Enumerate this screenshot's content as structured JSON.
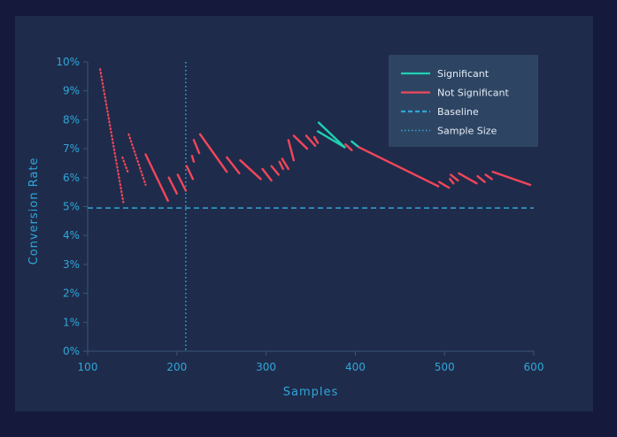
{
  "chart_data": {
    "type": "line",
    "xlabel": "Samples",
    "ylabel": "Conversion Rate",
    "xlim": [
      100,
      600
    ],
    "ylim": [
      0,
      10
    ],
    "x_ticks": [
      "100",
      "200",
      "300",
      "400",
      "500",
      "600"
    ],
    "y_ticks": [
      "0%",
      "1%",
      "2%",
      "3%",
      "4%",
      "5%",
      "6%",
      "7%",
      "8%",
      "9%",
      "10%"
    ],
    "grid": false,
    "legend_position": "top-right",
    "baseline": 4.95,
    "sample_size": 210,
    "legend": [
      {
        "label": "Significant",
        "style": "solid",
        "color": "#1fd1b2"
      },
      {
        "label": "Not Significant",
        "style": "solid",
        "color": "#f2465a"
      },
      {
        "label": "Baseline",
        "style": "dashed",
        "color": "#2fa7d8"
      },
      {
        "label": "Sample Size",
        "style": "dotted",
        "color": "#2fa7d8"
      }
    ],
    "series": [
      {
        "significant": false,
        "x": [
          114,
          140
        ],
        "y": [
          9.75,
          5.15
        ],
        "dotted": true
      },
      {
        "significant": false,
        "x": [
          139,
          145
        ],
        "y": [
          6.7,
          6.2
        ],
        "dotted": true
      },
      {
        "significant": false,
        "x": [
          146,
          165
        ],
        "y": [
          7.5,
          5.75
        ],
        "dotted": true
      },
      {
        "significant": false,
        "x": [
          165,
          190
        ],
        "y": [
          6.8,
          5.2
        ]
      },
      {
        "significant": false,
        "x": [
          191,
          200
        ],
        "y": [
          6.0,
          5.45
        ]
      },
      {
        "significant": false,
        "x": [
          201,
          210
        ],
        "y": [
          6.1,
          5.55
        ]
      },
      {
        "significant": false,
        "x": [
          211,
          218
        ],
        "y": [
          6.4,
          5.95
        ]
      },
      {
        "significant": false,
        "x": [
          217,
          219
        ],
        "y": [
          6.75,
          6.55
        ]
      },
      {
        "significant": false,
        "x": [
          219,
          225
        ],
        "y": [
          7.3,
          6.85
        ]
      },
      {
        "significant": false,
        "x": [
          226,
          256
        ],
        "y": [
          7.5,
          6.2
        ]
      },
      {
        "significant": false,
        "x": [
          256,
          270
        ],
        "y": [
          6.7,
          6.15
        ]
      },
      {
        "significant": false,
        "x": [
          271,
          294
        ],
        "y": [
          6.6,
          5.95
        ]
      },
      {
        "significant": false,
        "x": [
          296,
          306
        ],
        "y": [
          6.3,
          5.9
        ]
      },
      {
        "significant": false,
        "x": [
          306,
          314
        ],
        "y": [
          6.4,
          6.1
        ]
      },
      {
        "significant": false,
        "x": [
          315,
          319
        ],
        "y": [
          6.55,
          6.3
        ]
      },
      {
        "significant": false,
        "x": [
          318,
          325
        ],
        "y": [
          6.65,
          6.3
        ]
      },
      {
        "significant": false,
        "x": [
          325,
          331
        ],
        "y": [
          7.3,
          6.6
        ]
      },
      {
        "significant": false,
        "x": [
          331,
          346
        ],
        "y": [
          7.45,
          7.0
        ]
      },
      {
        "significant": false,
        "x": [
          345,
          355
        ],
        "y": [
          7.45,
          7.1
        ]
      },
      {
        "significant": false,
        "x": [
          354,
          358
        ],
        "y": [
          7.4,
          7.2
        ]
      },
      {
        "significant": true,
        "x": [
          358,
          388
        ],
        "y": [
          7.6,
          7.05
        ]
      },
      {
        "significant": true,
        "x": [
          359,
          388
        ],
        "y": [
          7.9,
          7.05
        ]
      },
      {
        "significant": false,
        "x": [
          389,
          396
        ],
        "y": [
          7.15,
          6.95
        ]
      },
      {
        "significant": true,
        "x": [
          396,
          404
        ],
        "y": [
          7.25,
          7.05
        ]
      },
      {
        "significant": false,
        "x": [
          404,
          493
        ],
        "y": [
          7.05,
          5.7
        ]
      },
      {
        "significant": false,
        "x": [
          494,
          505
        ],
        "y": [
          5.85,
          5.65
        ]
      },
      {
        "significant": false,
        "x": [
          506,
          510
        ],
        "y": [
          5.95,
          5.8
        ]
      },
      {
        "significant": false,
        "x": [
          507,
          515
        ],
        "y": [
          6.1,
          5.9
        ]
      },
      {
        "significant": false,
        "x": [
          516,
          536
        ],
        "y": [
          6.15,
          5.8
        ]
      },
      {
        "significant": false,
        "x": [
          537,
          545
        ],
        "y": [
          6.05,
          5.85
        ]
      },
      {
        "significant": false,
        "x": [
          546,
          553
        ],
        "y": [
          6.1,
          5.95
        ]
      },
      {
        "significant": false,
        "x": [
          554,
          596
        ],
        "y": [
          6.2,
          5.75
        ]
      }
    ]
  }
}
